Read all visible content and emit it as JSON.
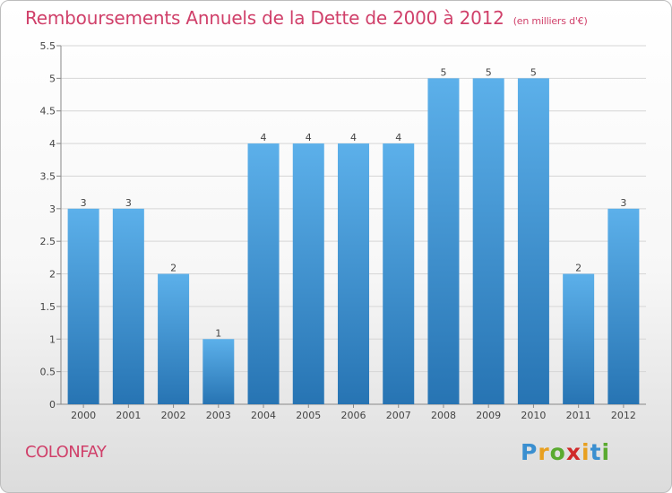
{
  "title": "Remboursements Annuels de la Dette de 2000 à 2012",
  "units": "(en milliers d'€)",
  "commune": "COLONFAY",
  "logo": {
    "letters": [
      "P",
      "r",
      "o",
      "x",
      "i",
      "t",
      "i"
    ],
    "colors": [
      "#3a8fd0",
      "#e8a020",
      "#5aaa30",
      "#d02a2a",
      "#e8a020",
      "#3a8fd0",
      "#5aaa30"
    ]
  },
  "colors": {
    "bar_top": "#5cb0ea",
    "bar_bottom": "#2774b3",
    "title": "#d0406a",
    "grid": "#d6d6d6"
  },
  "chart_data": {
    "type": "bar",
    "categories": [
      "2000",
      "2001",
      "2002",
      "2003",
      "2004",
      "2005",
      "2006",
      "2007",
      "2008",
      "2009",
      "2010",
      "2011",
      "2012"
    ],
    "values": [
      3,
      3,
      2,
      1,
      4,
      4,
      4,
      4,
      5,
      5,
      5,
      2,
      3
    ],
    "data_labels": [
      "3",
      "3",
      "2",
      "1",
      "4",
      "4",
      "4",
      "4",
      "5",
      "5",
      "5",
      "2",
      "3"
    ],
    "ylim": [
      0,
      5.5
    ],
    "yticks": [
      "0",
      "0.5",
      "1",
      "1.5",
      "2",
      "2.5",
      "3",
      "3.5",
      "4",
      "4.5",
      "5",
      "5.5"
    ],
    "ytick_values": [
      0,
      0.5,
      1,
      1.5,
      2,
      2.5,
      3,
      3.5,
      4,
      4.5,
      5,
      5.5
    ],
    "grid": true,
    "title": "Remboursements Annuels de la Dette de 2000 à 2012",
    "xlabel": "",
    "ylabel": ""
  }
}
